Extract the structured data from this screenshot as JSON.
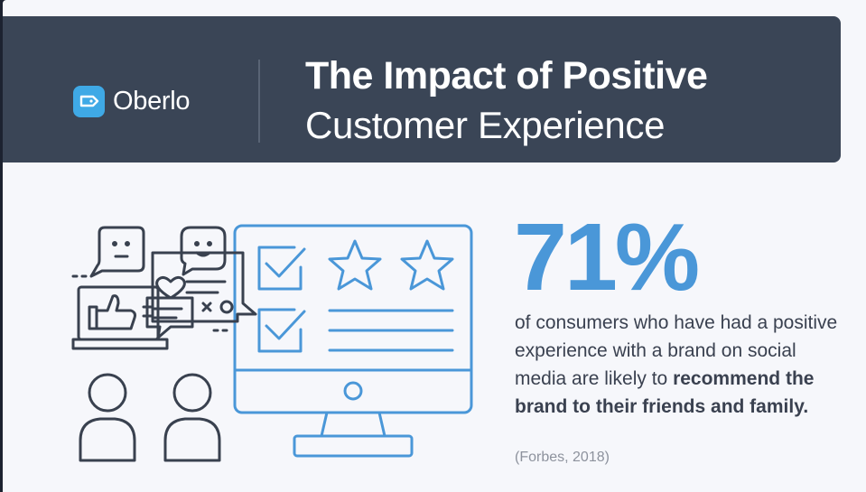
{
  "header": {
    "brand": "Oberlo",
    "title_line1": "The Impact of Positive",
    "title_line2": "Customer Experience"
  },
  "stat": {
    "value": "71%",
    "text_plain": "of consumers who have had a positive experience with a brand on social media are likely to ",
    "text_bold": "recommend the brand to their friends and family.",
    "source": "(Forbes, 2018)"
  },
  "colors": {
    "header_bg": "#3a4556",
    "accent_blue": "#4a97d8",
    "logo_blue": "#3fa9e6",
    "line_gray": "#39414f",
    "page_bg": "#f6f7fb"
  },
  "icons": [
    "oberlo-logo-icon",
    "monitor-icon",
    "checkbox-icon",
    "star-icon",
    "speech-bubble-icon",
    "thumbs-up-icon",
    "heart-icon",
    "user-icon"
  ]
}
